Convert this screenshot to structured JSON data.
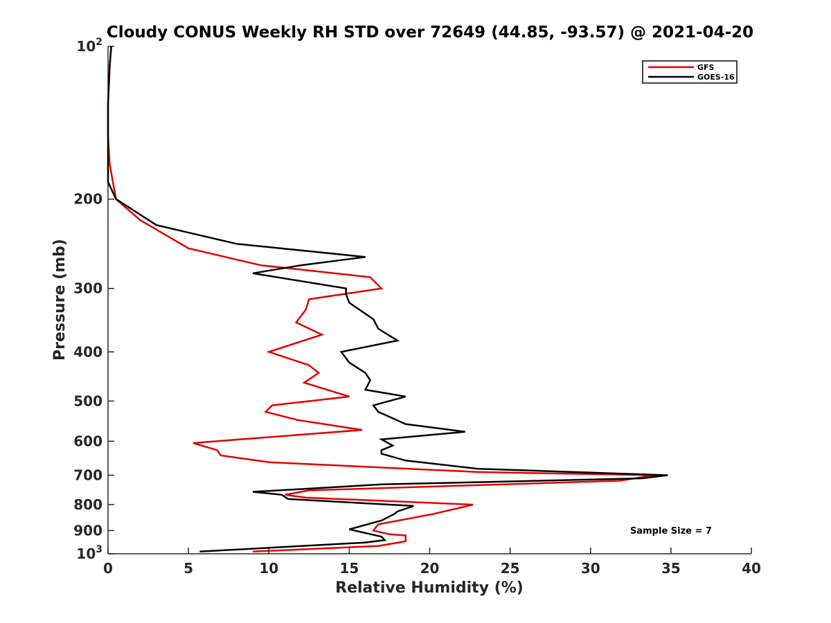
{
  "chart_data": {
    "type": "line",
    "title": "Cloudy CONUS Weekly RH STD over 72649 (44.85, -93.57) @ 2021-04-20",
    "xlabel": "Relative Humidity (%)",
    "ylabel": "Pressure (mb)",
    "xlim": [
      0,
      40
    ],
    "ylim": [
      100,
      1000
    ],
    "y_scale": "log",
    "y_reversed": true,
    "x_ticks": [
      "0",
      "5",
      "10",
      "15",
      "20",
      "25",
      "30",
      "35",
      "40"
    ],
    "y_ticks": [
      {
        "value": 100,
        "base": "10",
        "exp": "2"
      },
      {
        "value": 200,
        "label": "200"
      },
      {
        "value": 300,
        "label": "300"
      },
      {
        "value": 400,
        "label": "400"
      },
      {
        "value": 500,
        "label": "500"
      },
      {
        "value": 600,
        "label": "600"
      },
      {
        "value": 700,
        "label": "700"
      },
      {
        "value": 800,
        "label": "800"
      },
      {
        "value": 900,
        "label": "900"
      },
      {
        "value": 1000,
        "base": "10",
        "exp": "3"
      }
    ],
    "legend": {
      "placement": "top-right",
      "entries": [
        "GFS",
        "GOES-16"
      ]
    },
    "annotation": "Sample Size = 7",
    "series": [
      {
        "name": "GFS",
        "color": "#e30000",
        "points": [
          [
            0.2,
            100
          ],
          [
            0.1,
            110
          ],
          [
            0.0,
            130
          ],
          [
            0.0,
            150
          ],
          [
            0.1,
            170
          ],
          [
            0.3,
            185
          ],
          [
            0.5,
            200
          ],
          [
            2.0,
            220
          ],
          [
            5.0,
            250
          ],
          [
            9.5,
            270
          ],
          [
            16.3,
            285
          ],
          [
            17.0,
            300
          ],
          [
            12.5,
            315
          ],
          [
            12.3,
            330
          ],
          [
            11.7,
            350
          ],
          [
            13.3,
            370
          ],
          [
            10.0,
            400
          ],
          [
            12.5,
            425
          ],
          [
            13.1,
            440
          ],
          [
            12.2,
            460
          ],
          [
            15.0,
            490
          ],
          [
            10.2,
            510
          ],
          [
            9.8,
            525
          ],
          [
            11.8,
            545
          ],
          [
            15.8,
            570
          ],
          [
            5.3,
            605
          ],
          [
            6.8,
            625
          ],
          [
            7.0,
            640
          ],
          [
            10.0,
            660
          ],
          [
            23.0,
            690
          ],
          [
            34.0,
            700
          ],
          [
            31.8,
            718
          ],
          [
            12.5,
            750
          ],
          [
            11.0,
            765
          ],
          [
            12.3,
            775
          ],
          [
            22.7,
            800
          ],
          [
            20.2,
            835
          ],
          [
            16.8,
            875
          ],
          [
            16.5,
            900
          ],
          [
            17.5,
            915
          ],
          [
            18.5,
            920
          ],
          [
            18.5,
            945
          ],
          [
            16.8,
            965
          ],
          [
            9.0,
            990
          ]
        ]
      },
      {
        "name": "GOES-16",
        "color": "#000000",
        "points": [
          [
            0.2,
            100
          ],
          [
            0.1,
            110
          ],
          [
            0.0,
            130
          ],
          [
            0.0,
            150
          ],
          [
            0.0,
            170
          ],
          [
            0.0,
            185
          ],
          [
            0.5,
            200
          ],
          [
            3.0,
            225
          ],
          [
            8.0,
            245
          ],
          [
            16.0,
            260
          ],
          [
            12.0,
            270
          ],
          [
            9.0,
            280
          ],
          [
            14.8,
            300
          ],
          [
            14.8,
            308
          ],
          [
            15.0,
            320
          ],
          [
            16.5,
            345
          ],
          [
            16.8,
            360
          ],
          [
            18.0,
            380
          ],
          [
            14.5,
            400
          ],
          [
            15.0,
            420
          ],
          [
            16.0,
            440
          ],
          [
            16.3,
            455
          ],
          [
            16.0,
            475
          ],
          [
            18.5,
            490
          ],
          [
            16.5,
            510
          ],
          [
            16.8,
            525
          ],
          [
            18.5,
            555
          ],
          [
            22.2,
            575
          ],
          [
            17.0,
            595
          ],
          [
            17.7,
            612
          ],
          [
            17.0,
            625
          ],
          [
            17.0,
            635
          ],
          [
            18.5,
            655
          ],
          [
            23.0,
            680
          ],
          [
            34.8,
            700
          ],
          [
            33.2,
            710
          ],
          [
            17.0,
            730
          ],
          [
            9.0,
            755
          ],
          [
            10.8,
            765
          ],
          [
            11.2,
            780
          ],
          [
            19.0,
            805
          ],
          [
            18.0,
            825
          ],
          [
            17.8,
            835
          ],
          [
            17.0,
            860
          ],
          [
            15.0,
            895
          ],
          [
            16.0,
            910
          ],
          [
            17.0,
            925
          ],
          [
            17.2,
            940
          ],
          [
            16.0,
            950
          ],
          [
            14.8,
            955
          ],
          [
            5.7,
            990
          ]
        ]
      }
    ]
  }
}
